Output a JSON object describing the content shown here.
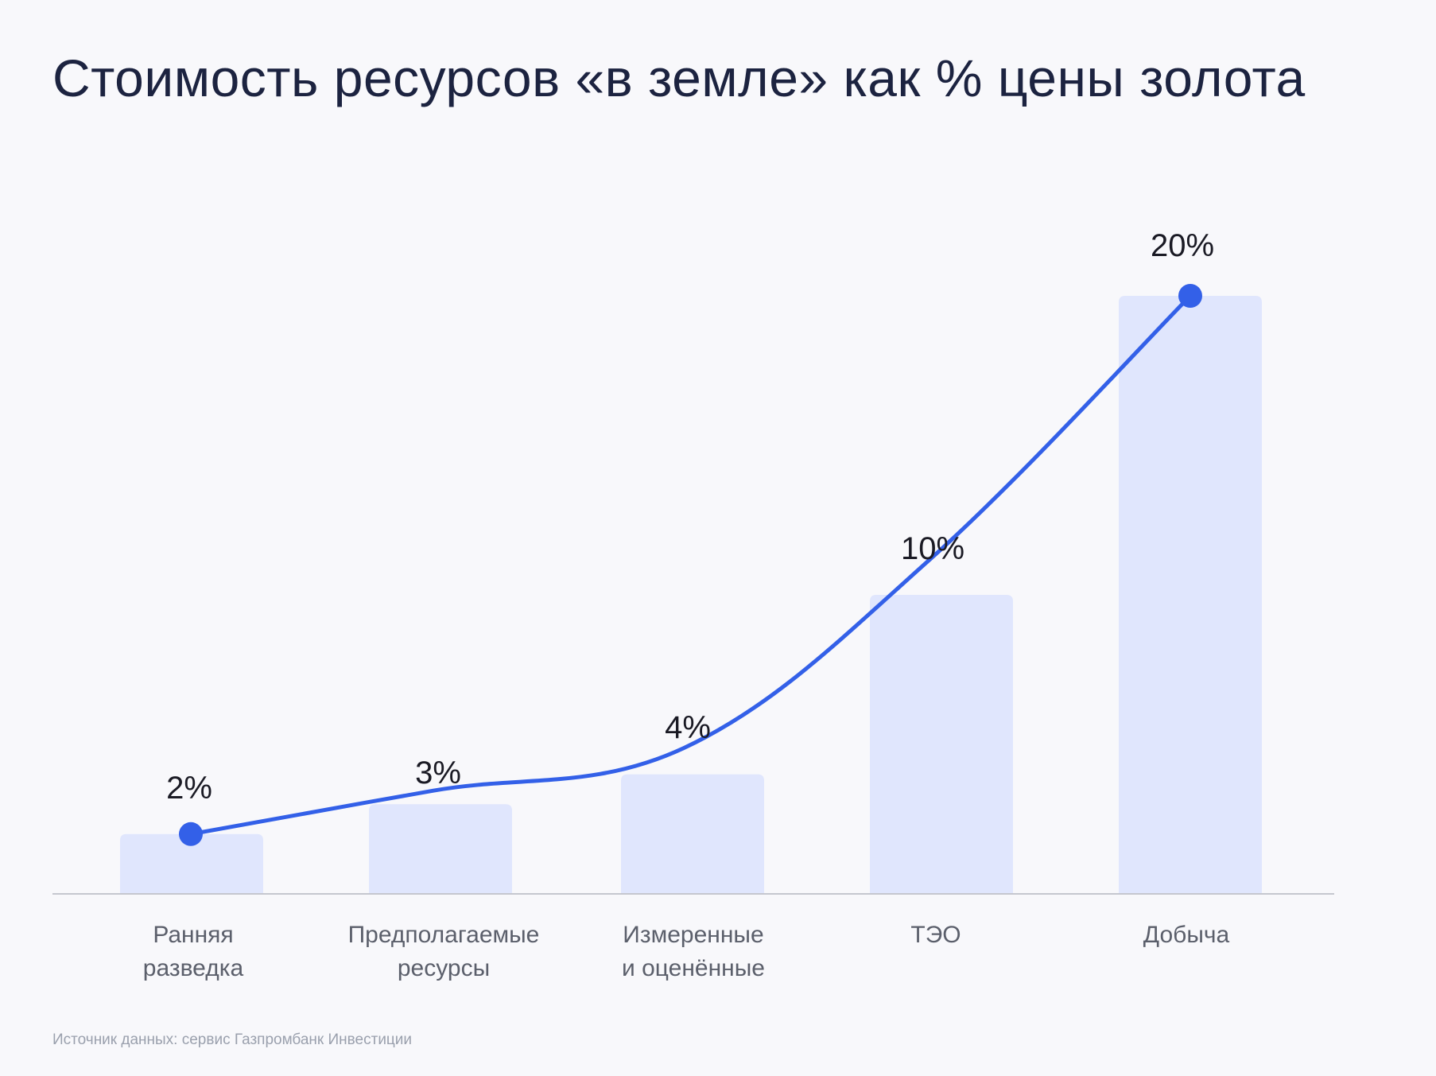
{
  "colors": {
    "background": "#f8f8fb",
    "bar": "#e0e6fd",
    "line": "#3360e8",
    "axis": "#c5c7cf",
    "title": "#1c2340",
    "source": "#9aa0ad"
  },
  "chart_data": {
    "type": "bar",
    "title": "Стоимость ресурсов «в земле» как % цены золота",
    "categories": [
      [
        "Ранняя",
        "разведка"
      ],
      [
        "Предполагаемые",
        "ресурсы"
      ],
      [
        "Измеренные",
        "и оценённые"
      ],
      [
        "ТЭО"
      ],
      [
        "Добыча"
      ]
    ],
    "values": [
      2,
      3,
      4,
      10,
      20
    ],
    "value_labels": [
      "2%",
      "3%",
      "4%",
      "10%",
      "20%"
    ],
    "overlay_line": "smooth curve through bar tops with markers at first and last points",
    "ylim": [
      0,
      20
    ],
    "xlabel": "",
    "ylabel": "",
    "grid": false,
    "legend": "none"
  },
  "source": "Источник данных: сервис Газпромбанк Инвестиции"
}
